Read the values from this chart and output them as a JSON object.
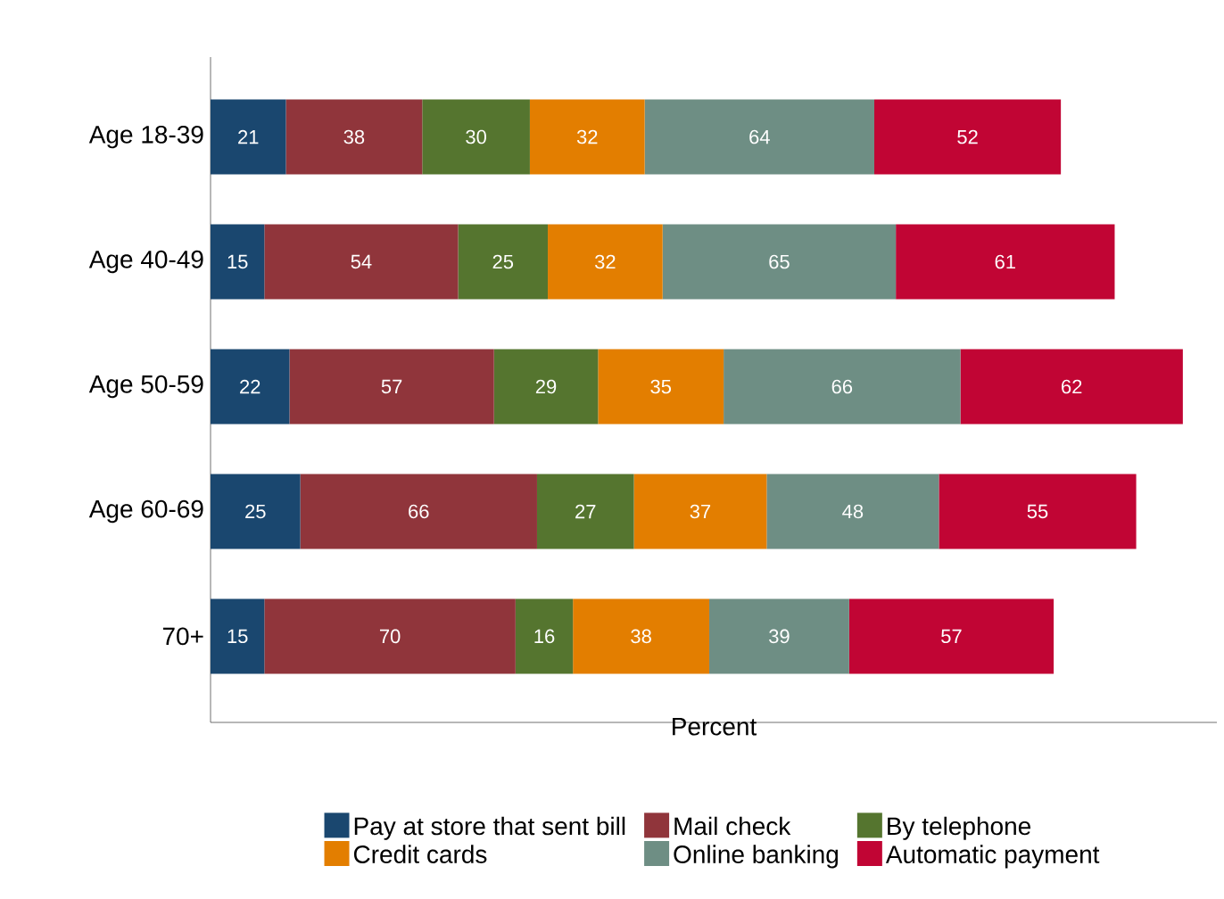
{
  "chart_data": {
    "type": "bar",
    "orientation": "horizontal",
    "stacked": true,
    "data_labels": true,
    "xlabel": "Percent",
    "legend": "bottom",
    "tick_labels": "y",
    "grid": false,
    "categories": [
      "Age 18-39",
      "Age 40-49",
      "Age 50-59",
      "Age 60-69",
      "70+"
    ],
    "series": [
      {
        "name": "Pay at store that sent bill",
        "color": "#1a476f",
        "values": [
          21,
          15,
          22,
          25,
          15
        ]
      },
      {
        "name": "Mail check",
        "color": "#90353b",
        "values": [
          38,
          54,
          57,
          66,
          70
        ]
      },
      {
        "name": "By telephone",
        "color": "#55752f",
        "values": [
          30,
          25,
          29,
          27,
          16
        ]
      },
      {
        "name": "Credit cards",
        "color": "#e37e00",
        "values": [
          32,
          32,
          35,
          37,
          38
        ]
      },
      {
        "name": "Online banking",
        "color": "#6e8e84",
        "values": [
          64,
          65,
          66,
          48,
          39
        ]
      },
      {
        "name": "Automatic payment",
        "color": "#c10534",
        "values": [
          52,
          61,
          62,
          55,
          57
        ]
      }
    ]
  }
}
